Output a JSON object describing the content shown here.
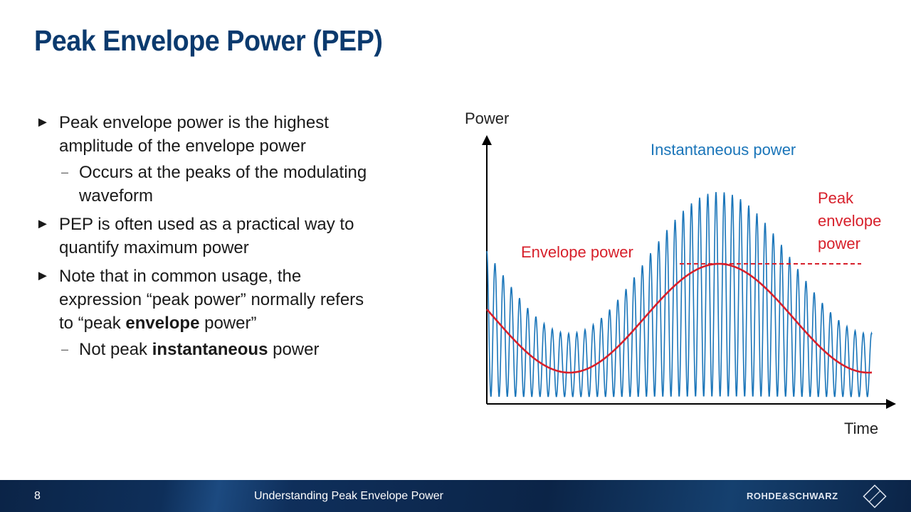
{
  "slide": {
    "title": "Peak Envelope Power (PEP)",
    "bullets": [
      {
        "level": 1,
        "runs": [
          {
            "text": "Peak envelope power is the highest amplitude of the envelope power"
          }
        ]
      },
      {
        "level": 2,
        "runs": [
          {
            "text": "Occurs at the peaks of the modulating waveform"
          }
        ]
      },
      {
        "level": 1,
        "runs": [
          {
            "text": "PEP is often used as a practical way to quantify maximum power"
          }
        ]
      },
      {
        "level": 1,
        "runs": [
          {
            "text": "Note that in common usage, the expression “peak power” normally refers to “peak "
          },
          {
            "text": "envelope",
            "bold": true
          },
          {
            "text": " power”"
          }
        ]
      },
      {
        "level": 2,
        "runs": [
          {
            "text": "Not peak "
          },
          {
            "text": "instantaneous",
            "bold": true
          },
          {
            "text": " power"
          }
        ]
      }
    ],
    "footer": {
      "page": "8",
      "title": "Understanding Peak Envelope Power",
      "brand": "ROHDE&SCHWARZ"
    }
  },
  "diagram": {
    "y_axis_label": "Power",
    "x_axis_label": "Time",
    "instantaneous_label": "Instantaneous power",
    "envelope_label": "Envelope power",
    "peak_label_lines": [
      "Peak",
      "envelope",
      "power"
    ]
  }
}
